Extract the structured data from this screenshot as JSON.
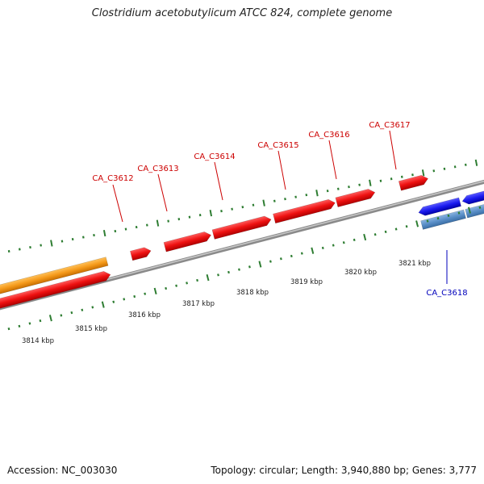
{
  "title": "Clostridium acetobutylicum ATCC 824, complete genome",
  "footer": {
    "accession": "Accession: NC_003030",
    "summary": "Topology: circular; Length: 3,940,880 bp; Genes: 3,777"
  },
  "colors": {
    "forward_gene": "#ee1111",
    "reverse_gene": "#1a1aee",
    "reverse_gene_light": "#5a8fc8",
    "other_gene": "#f59a1a",
    "backbone": "#8a8a8a",
    "ticks": "#2e7d32",
    "forward_label": "#cc0000",
    "reverse_label": "#0000bb"
  },
  "scale": {
    "unit": "kbp",
    "labels": [
      "3814 kbp",
      "3815 kbp",
      "3816 kbp",
      "3817 kbp",
      "3818 kbp",
      "3819 kbp",
      "3820 kbp",
      "3821 kbp"
    ]
  },
  "genes": [
    {
      "name": "CA_C3612",
      "strand": "+"
    },
    {
      "name": "CA_C3613",
      "strand": "+"
    },
    {
      "name": "CA_C3614",
      "strand": "+"
    },
    {
      "name": "CA_C3615",
      "strand": "+"
    },
    {
      "name": "CA_C3616",
      "strand": "+"
    },
    {
      "name": "CA_C3617",
      "strand": "+"
    },
    {
      "name": "CA_C3618",
      "strand": "-"
    }
  ]
}
